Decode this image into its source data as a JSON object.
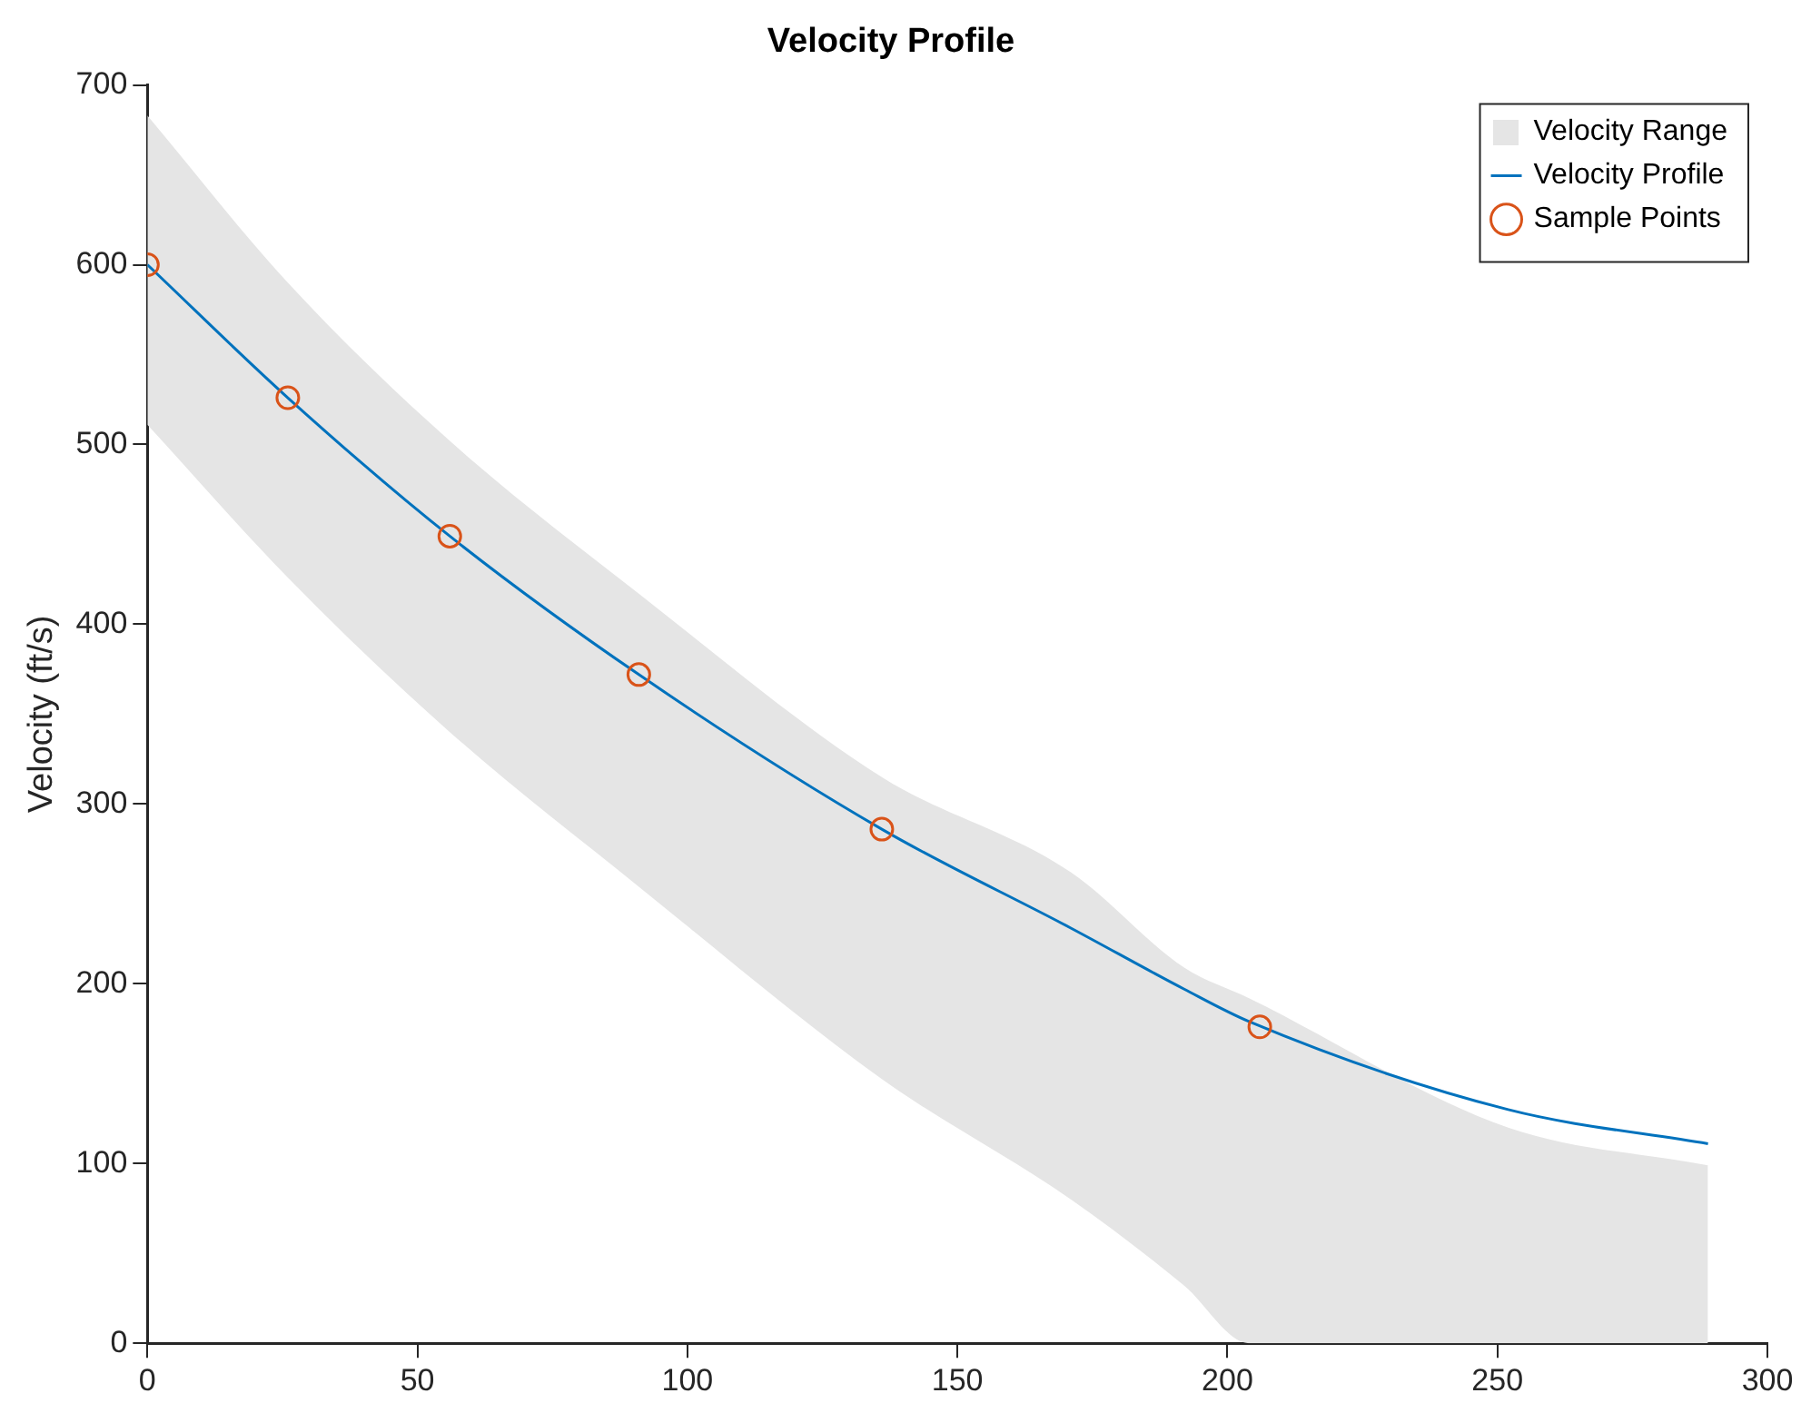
{
  "chart_data": {
    "type": "line",
    "title": "Velocity Profile",
    "ylabel": "Velocity (ft/s)",
    "xlim": [
      0,
      300
    ],
    "xticks": [
      0,
      50,
      100,
      150,
      200,
      250,
      300
    ],
    "ylim": [
      0,
      700
    ],
    "yticks": [
      0,
      100,
      200,
      300,
      400,
      500,
      600,
      700
    ],
    "grid": false,
    "legend": "top right",
    "annotations": [
      "Velocity Range"
    ],
    "series": [
      {
        "name": "Velocity Profile",
        "type": "line",
        "color": "#0072bd",
        "marker": "none",
        "x": [
          0,
          26,
          56,
          91,
          136,
          171,
          192,
          204,
          252,
          289
        ],
        "values": [
          600,
          526,
          449,
          372,
          286,
          231,
          197,
          179,
          130,
          111
        ],
        "lower": [
          511,
          426,
          340,
          254,
          147,
          80,
          32,
          0,
          0,
          0
        ],
        "upper": [
          683,
          590,
          502,
          417,
          315,
          262,
          209,
          192,
          120,
          99
        ]
      },
      {
        "name": "Sample Points",
        "type": "scatter",
        "color": "#d95319",
        "marker": "circle",
        "x": [
          0,
          26,
          56,
          91,
          136,
          206
        ],
        "values": [
          600,
          526,
          449,
          372,
          286,
          176
        ]
      }
    ]
  }
}
